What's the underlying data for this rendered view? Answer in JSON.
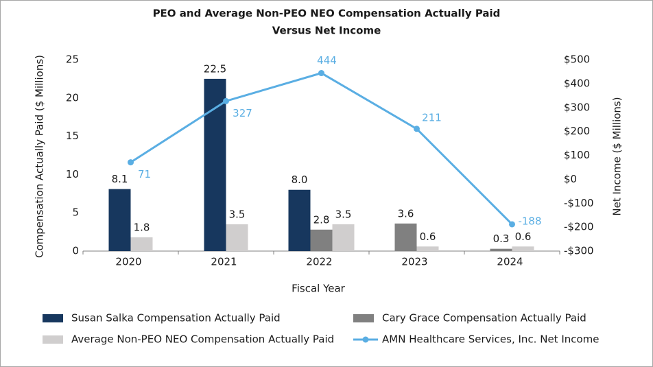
{
  "chart_data": {
    "type": "bar_line",
    "title": [
      "PEO and Average Non-PEO NEO Compensation Actually Paid",
      "Versus  Net Income"
    ],
    "x_label": "Fiscal Year",
    "y_label": "Compensation Actually Paid ($ Millions)",
    "y2_label": "Net Income ($ Millions)",
    "categories": [
      "2020",
      "2021",
      "2022",
      "2023",
      "2024"
    ],
    "ylim": [
      0,
      25
    ],
    "yticks": [
      0,
      5,
      10,
      15,
      20,
      25
    ],
    "y2lim": [
      -300,
      500
    ],
    "y2ticks": [
      {
        "value": -300,
        "label": "-$300"
      },
      {
        "value": -200,
        "label": "-$200"
      },
      {
        "value": -100,
        "label": "-$100"
      },
      {
        "value": 0,
        "label": "$0"
      },
      {
        "value": 100,
        "label": "$100"
      },
      {
        "value": 200,
        "label": "$200"
      },
      {
        "value": 300,
        "label": "$300"
      },
      {
        "value": 400,
        "label": "$400"
      },
      {
        "value": 500,
        "label": "$500"
      }
    ],
    "grid": false,
    "series": [
      {
        "name": "Susan Salka Compensation Actually Paid",
        "type": "bar",
        "color": "#17375e",
        "values": [
          8.1,
          22.5,
          8.0,
          null,
          null
        ],
        "value_labels": [
          "8.1",
          "22.5",
          "8.0",
          null,
          null
        ]
      },
      {
        "name": "Cary Grace Compensation Actually Paid",
        "type": "bar",
        "color": "#808080",
        "values": [
          null,
          null,
          2.8,
          3.6,
          0.3
        ],
        "value_labels": [
          null,
          null,
          "2.8",
          "3.6",
          "0.3"
        ]
      },
      {
        "name": "Average Non-PEO NEO Compensation Actually Paid",
        "type": "bar",
        "color": "#d0cece",
        "values": [
          1.8,
          3.5,
          3.5,
          0.6,
          0.6
        ],
        "value_labels": [
          "1.8",
          "3.5",
          "3.5",
          "0.6",
          "0.6"
        ]
      },
      {
        "name": "AMN Healthcare Services, Inc. Net Income",
        "type": "line",
        "axis": "y2",
        "color": "#5aaee3",
        "values": [
          71,
          327,
          444,
          211,
          -188
        ]
      }
    ]
  }
}
